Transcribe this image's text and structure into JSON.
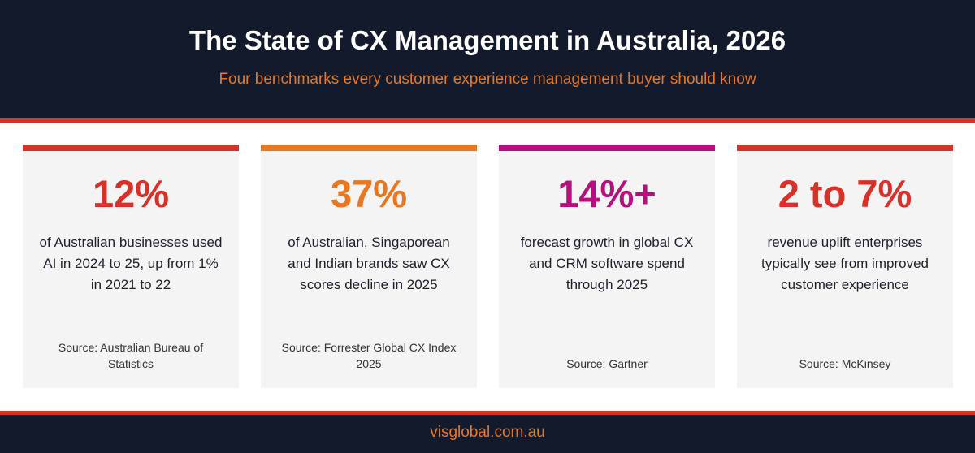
{
  "header": {
    "title": "The State of CX Management in Australia, 2026",
    "subtitle": "Four benchmarks every customer experience management buyer should know"
  },
  "cards": [
    {
      "stat": "12%",
      "description": "of Australian businesses used AI in 2024 to 25, up from 1% in 2021 to 22",
      "source": "Source: Australian Bureau of Statistics",
      "accent_color": "#d9302a"
    },
    {
      "stat": "37%",
      "description": "of Australian, Singaporean and Indian brands saw CX scores decline in 2025",
      "source": "Source: Forrester Global CX Index 2025",
      "accent_color": "#e87722"
    },
    {
      "stat": "14%+",
      "description": "forecast growth in global CX and CRM software spend through 2025",
      "source": "Source: Gartner",
      "accent_color": "#b5107e"
    },
    {
      "stat": "2 to 7%",
      "description": "revenue uplift enterprises typically see from improved customer experience",
      "source": "Source: McKinsey",
      "accent_color": "#d9302a"
    }
  ],
  "footer": {
    "url": "visglobal.com.au"
  },
  "colors": {
    "navy": "#131a2b",
    "red": "#d9302a",
    "orange": "#e87722",
    "magenta": "#b5107e",
    "card_bg": "#f4f4f4"
  }
}
